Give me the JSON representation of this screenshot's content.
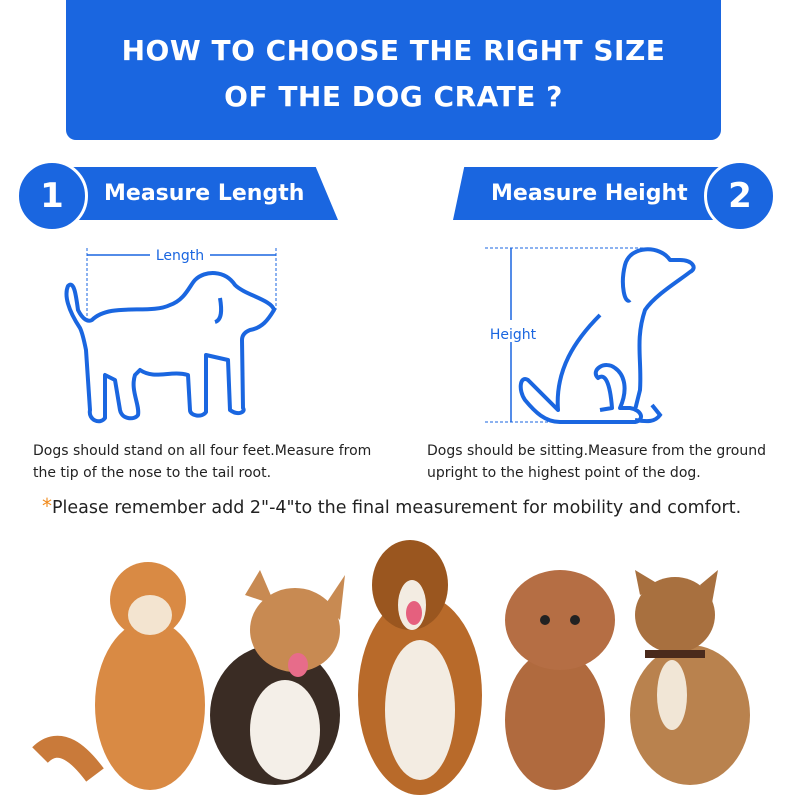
{
  "title": {
    "line1": "HOW TO CHOOSE THE RIGHT SIZE",
    "line2": "OF THE DOG CRATE ?"
  },
  "steps": [
    {
      "number": "1",
      "label": "Measure Length",
      "measure_label": "Length",
      "description_line1": "Dogs should stand on all four feet.Measure from",
      "description_line2": "the tip of the nose to the tail root."
    },
    {
      "number": "2",
      "label": "Measure Height",
      "measure_label": "Height",
      "description_line1": "Dogs should be sitting.Measure from the ground",
      "description_line2": "upright to the highest point of the dog."
    }
  ],
  "note": {
    "star": "*",
    "text": "Please remember add 2\"-4\"to the final measurement for mobility and comfort."
  },
  "colors": {
    "accent": "#1a66e0",
    "star": "#f08a1c"
  },
  "photos": [
    "shiba-inu",
    "corgi",
    "collie",
    "poodle",
    "french-bulldog"
  ]
}
